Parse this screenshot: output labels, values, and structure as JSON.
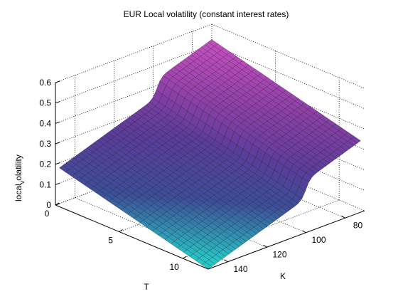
{
  "chart_data": {
    "type": "surface",
    "title": "EUR Local volatility (constant interest rates)",
    "xlabel": "T",
    "ylabel": "K",
    "zlabel_main": "local",
    "zlabel_sub": "v",
    "zlabel_rest": "olatility",
    "x_ticks": [
      0,
      5,
      10
    ],
    "y_ticks": [
      80,
      100,
      120,
      140
    ],
    "z_ticks": [
      0,
      0.1,
      0.2,
      0.3,
      0.4,
      0.5,
      0.6
    ],
    "xlim": [
      0,
      12
    ],
    "ylim": [
      70,
      150
    ],
    "zlim": [
      0,
      0.6
    ],
    "grid": true,
    "colormap": [
      "#27c6c6",
      "#3d4e99",
      "#5a3c9a",
      "#8a3fa6",
      "#c04dbd"
    ],
    "surface_corners": [
      {
        "T": 0.3,
        "K": 150,
        "value": 0.19
      },
      {
        "T": 0.3,
        "K": 72,
        "value": 0.54
      },
      {
        "T": 12,
        "K": 72,
        "value": 0.35
      },
      {
        "T": 12,
        "K": 150,
        "value": 0.0
      }
    ]
  }
}
